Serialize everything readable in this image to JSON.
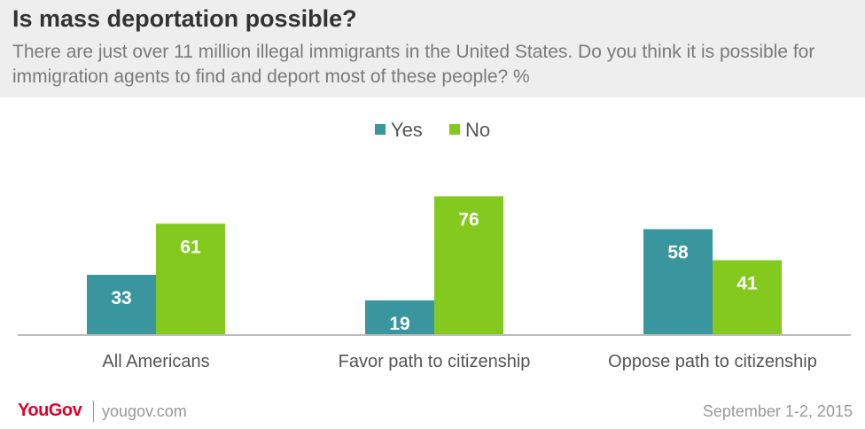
{
  "header": {
    "title": "Is mass deportation possible?",
    "subtitle": "There are just over 11 million illegal immigrants in the United States. Do you think it is possible for immigration agents to find and deport most of these people? %"
  },
  "chart_data": {
    "type": "bar",
    "categories": [
      "All Americans",
      "Favor path to citizenship",
      "Oppose path to citizenship"
    ],
    "series": [
      {
        "name": "Yes",
        "color": "#3a969e",
        "values": [
          33,
          19,
          58
        ]
      },
      {
        "name": "No",
        "color": "#84c91d",
        "values": [
          61,
          76,
          41
        ]
      }
    ],
    "legend_position": "top-center",
    "grid": false,
    "ylim": [
      0,
      80
    ],
    "data_labels": true
  },
  "footer": {
    "brand": "YouGov",
    "url": "yougov.com",
    "date": "September 1-2, 2015"
  }
}
